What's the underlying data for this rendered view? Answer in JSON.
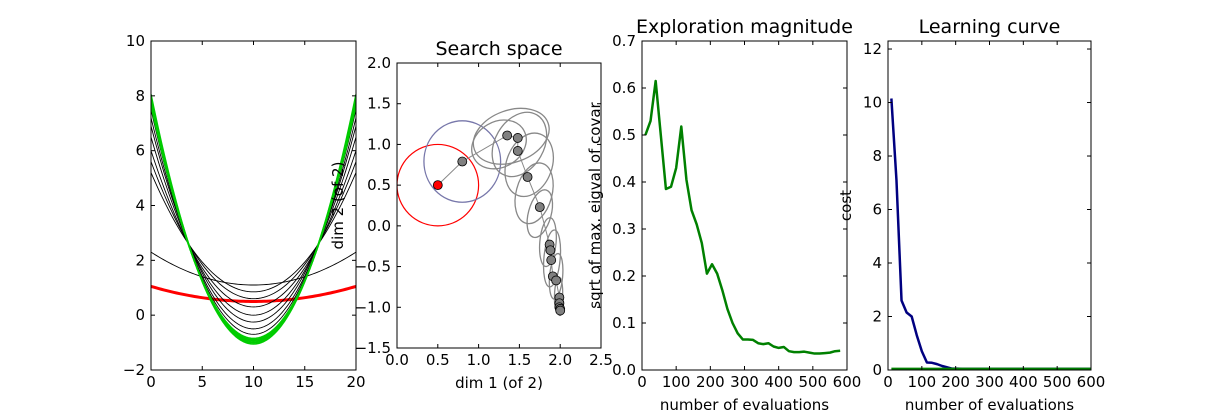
{
  "chart_data": [
    {
      "type": "line",
      "title": "",
      "xlabel": "",
      "ylabel": "",
      "xlim": [
        0,
        20
      ],
      "ylim": [
        -2,
        10
      ],
      "xticks": [
        0,
        5,
        10,
        15,
        20
      ],
      "yticks": [
        -2,
        0,
        2,
        4,
        6,
        8,
        10
      ],
      "series": [
        {
          "color": "#ff0000",
          "x": [
            0,
            10,
            20
          ],
          "values": [
            1.05,
            0.5,
            1.05
          ],
          "emphasis": true
        },
        {
          "color": "#000000",
          "x": [
            0,
            10,
            20
          ],
          "values": [
            2.3,
            1.1,
            2.3
          ]
        },
        {
          "color": "#000000",
          "x": [
            0,
            10,
            20
          ],
          "values": [
            5.2,
            0.85,
            5.2
          ]
        },
        {
          "color": "#000000",
          "x": [
            0,
            10,
            20
          ],
          "values": [
            5.6,
            0.6,
            5.6
          ]
        },
        {
          "color": "#000000",
          "x": [
            0,
            10,
            20
          ],
          "values": [
            6.0,
            0.3,
            6.0
          ]
        },
        {
          "color": "#000000",
          "x": [
            0,
            10,
            20
          ],
          "values": [
            6.5,
            0.0,
            6.5
          ]
        },
        {
          "color": "#000000",
          "x": [
            0,
            10,
            20
          ],
          "values": [
            6.9,
            -0.25,
            6.9
          ]
        },
        {
          "color": "#000000",
          "x": [
            0,
            10,
            20
          ],
          "values": [
            7.2,
            -0.5,
            7.2
          ]
        },
        {
          "color": "#000000",
          "x": [
            0,
            10,
            20
          ],
          "values": [
            7.5,
            -0.7,
            7.5
          ]
        },
        {
          "color": "#00cc00",
          "x": [
            0,
            10,
            20
          ],
          "values": [
            7.65,
            -0.85,
            7.65
          ]
        },
        {
          "color": "#00cc00",
          "x": [
            0,
            10,
            20
          ],
          "values": [
            7.75,
            -0.9,
            7.75
          ]
        },
        {
          "color": "#00cc00",
          "x": [
            0,
            10,
            20
          ],
          "values": [
            7.85,
            -0.95,
            7.85
          ]
        },
        {
          "color": "#00cc00",
          "x": [
            0,
            10,
            20
          ],
          "values": [
            7.95,
            -1.0,
            7.95
          ]
        },
        {
          "color": "#00cc00",
          "x": [
            0,
            10,
            20
          ],
          "values": [
            8.05,
            -1.05,
            8.05
          ]
        }
      ]
    },
    {
      "type": "scatter",
      "title": "Search space",
      "xlabel": "dim 1 (of 2)",
      "ylabel": "dim 2 (of 2)",
      "xlim": [
        0.0,
        2.5
      ],
      "ylim": [
        -1.5,
        2.0
      ],
      "xticks": [
        0.0,
        0.5,
        1.0,
        1.5,
        2.0,
        2.5
      ],
      "yticks": [
        -1.5,
        -1.0,
        -0.5,
        0.0,
        0.5,
        1.0,
        1.5,
        2.0
      ],
      "start_point": {
        "x": 0.5,
        "y": 0.5,
        "color": "#ff0000"
      },
      "points": [
        {
          "x": 0.8,
          "y": 0.79
        },
        {
          "x": 1.35,
          "y": 1.11
        },
        {
          "x": 1.48,
          "y": 1.08
        },
        {
          "x": 1.48,
          "y": 0.92
        },
        {
          "x": 1.6,
          "y": 0.6
        },
        {
          "x": 1.75,
          "y": 0.23
        },
        {
          "x": 1.87,
          "y": -0.23
        },
        {
          "x": 1.88,
          "y": -0.3
        },
        {
          "x": 1.89,
          "y": -0.42
        },
        {
          "x": 1.91,
          "y": -0.62
        },
        {
          "x": 1.95,
          "y": -0.67
        },
        {
          "x": 1.99,
          "y": -0.88
        },
        {
          "x": 1.99,
          "y": -0.95
        },
        {
          "x": 1.99,
          "y": -1.0
        },
        {
          "x": 2.0,
          "y": -1.02
        },
        {
          "x": 2.0,
          "y": -1.04
        }
      ],
      "ellipses": [
        {
          "cx": 0.5,
          "cy": 0.5,
          "rx": 0.5,
          "ry": 0.5,
          "angle": 0,
          "color": "#ff0000"
        },
        {
          "cx": 0.8,
          "cy": 0.79,
          "rx": 0.47,
          "ry": 0.5,
          "angle": 0,
          "color": "#7777aa"
        },
        {
          "cx": 1.25,
          "cy": 1.0,
          "rx": 0.35,
          "ry": 0.28,
          "angle": 30,
          "color": "#888888"
        },
        {
          "cx": 1.4,
          "cy": 1.1,
          "rx": 0.48,
          "ry": 0.32,
          "angle": 20,
          "color": "#888888"
        },
        {
          "cx": 1.5,
          "cy": 1.0,
          "rx": 0.42,
          "ry": 0.3,
          "angle": 60,
          "color": "#888888"
        },
        {
          "cx": 1.62,
          "cy": 0.75,
          "rx": 0.4,
          "ry": 0.28,
          "angle": 70,
          "color": "#888888"
        },
        {
          "cx": 1.68,
          "cy": 0.4,
          "rx": 0.38,
          "ry": 0.22,
          "angle": 75,
          "color": "#888888"
        },
        {
          "cx": 1.75,
          "cy": 0.15,
          "rx": 0.3,
          "ry": 0.14,
          "angle": 75,
          "color": "#888888"
        },
        {
          "cx": 1.85,
          "cy": -0.2,
          "rx": 0.3,
          "ry": 0.1,
          "angle": 85,
          "color": "#888888"
        },
        {
          "cx": 1.9,
          "cy": -0.4,
          "rx": 0.35,
          "ry": 0.1,
          "angle": 85,
          "color": "#888888"
        },
        {
          "cx": 1.95,
          "cy": -0.62,
          "rx": 0.28,
          "ry": 0.08,
          "angle": 85,
          "color": "#888888"
        },
        {
          "cx": 1.98,
          "cy": -0.85,
          "rx": 0.22,
          "ry": 0.05,
          "angle": 88,
          "color": "#888888"
        },
        {
          "cx": 2.0,
          "cy": -0.98,
          "rx": 0.12,
          "ry": 0.04,
          "angle": 88,
          "color": "#888888"
        }
      ]
    },
    {
      "type": "line",
      "title": "Exploration magnitude",
      "xlabel": "number of evaluations",
      "ylabel": "sqrt of max. eigval of covar",
      "xlim": [
        0,
        600
      ],
      "ylim": [
        0.0,
        0.7
      ],
      "xticks": [
        0,
        100,
        200,
        300,
        400,
        500,
        600
      ],
      "yticks": [
        0.0,
        0.1,
        0.2,
        0.3,
        0.4,
        0.5,
        0.6,
        0.7
      ],
      "series": [
        {
          "color": "#008000",
          "x": [
            10,
            25,
            40,
            55,
            70,
            85,
            100,
            115,
            130,
            145,
            160,
            175,
            190,
            205,
            220,
            235,
            250,
            265,
            280,
            295,
            310,
            325,
            340,
            355,
            370,
            385,
            400,
            415,
            430,
            445,
            460,
            475,
            490,
            505,
            520,
            535,
            550,
            565,
            580
          ],
          "values": [
            0.5,
            0.53,
            0.615,
            0.5,
            0.385,
            0.39,
            0.43,
            0.518,
            0.405,
            0.34,
            0.31,
            0.27,
            0.205,
            0.225,
            0.205,
            0.17,
            0.13,
            0.1,
            0.078,
            0.065,
            0.065,
            0.064,
            0.057,
            0.055,
            0.057,
            0.05,
            0.047,
            0.049,
            0.04,
            0.038,
            0.038,
            0.039,
            0.037,
            0.035,
            0.035,
            0.036,
            0.037,
            0.04,
            0.041
          ]
        }
      ]
    },
    {
      "type": "line",
      "title": "Learning curve",
      "xlabel": "number of evaluations",
      "ylabel": "cost",
      "xlim": [
        0,
        600
      ],
      "ylim": [
        0,
        12.3
      ],
      "xticks": [
        0,
        100,
        200,
        300,
        400,
        500,
        600
      ],
      "yticks": [
        0,
        2,
        4,
        6,
        8,
        10,
        12
      ],
      "series": [
        {
          "color": "#000080",
          "x": [
            10,
            25,
            40,
            55,
            70,
            85,
            100,
            115,
            130,
            145,
            160,
            175,
            190,
            205,
            220,
            250,
            300,
            350,
            400,
            450,
            500,
            550,
            600
          ],
          "values": [
            10.15,
            7.1,
            2.6,
            2.15,
            2.0,
            1.3,
            0.7,
            0.28,
            0.27,
            0.22,
            0.15,
            0.1,
            0.05,
            0.05,
            0.04,
            0.04,
            0.04,
            0.04,
            0.04,
            0.04,
            0.04,
            0.04,
            0.04
          ]
        },
        {
          "color": "#008000",
          "x": [
            10,
            100,
            200,
            300,
            400,
            500,
            600
          ],
          "values": [
            0.04,
            0.04,
            0.04,
            0.04,
            0.04,
            0.04,
            0.04
          ]
        }
      ]
    }
  ]
}
